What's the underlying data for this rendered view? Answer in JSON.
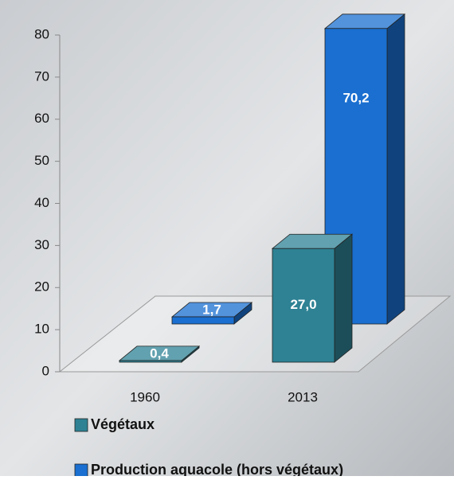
{
  "chart_data": {
    "type": "bar3d",
    "categories": [
      "1960",
      "2013"
    ],
    "series": [
      {
        "name": "Végétaux",
        "color": "#2e8294",
        "values": [
          0.4,
          27.0
        ],
        "value_labels": [
          "0,4",
          "27,0"
        ]
      },
      {
        "name": "Production aquacole (hors végétaux)",
        "color": "#1a6fd0",
        "values": [
          1.7,
          70.2
        ],
        "value_labels": [
          "1,7",
          "70,2"
        ]
      }
    ],
    "ylim": [
      0,
      80
    ],
    "yticks": [
      0,
      10,
      20,
      30,
      40,
      50,
      60,
      70,
      80
    ]
  }
}
